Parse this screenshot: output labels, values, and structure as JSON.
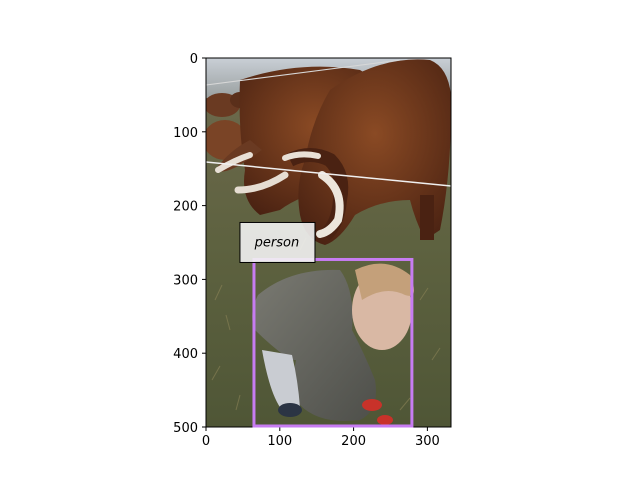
{
  "image": {
    "width": 332,
    "height": 500,
    "scene": "Long-haired brown cattle with curved white horns grazing behind a wire fence; a toddler in a grey hooded jacket crouching on grass in the foreground"
  },
  "axes": {
    "x_ticks": [
      "0",
      "100",
      "200",
      "300"
    ],
    "y_ticks": [
      "0",
      "100",
      "200",
      "300",
      "400",
      "500"
    ]
  },
  "detections": [
    {
      "label": "person",
      "box_color": "#c77cf2",
      "x0": 65,
      "y0": 273,
      "x1": 279,
      "y1": 500
    }
  ],
  "colors": {
    "frame": "#000000",
    "label_bg": "#f2f2f2"
  }
}
